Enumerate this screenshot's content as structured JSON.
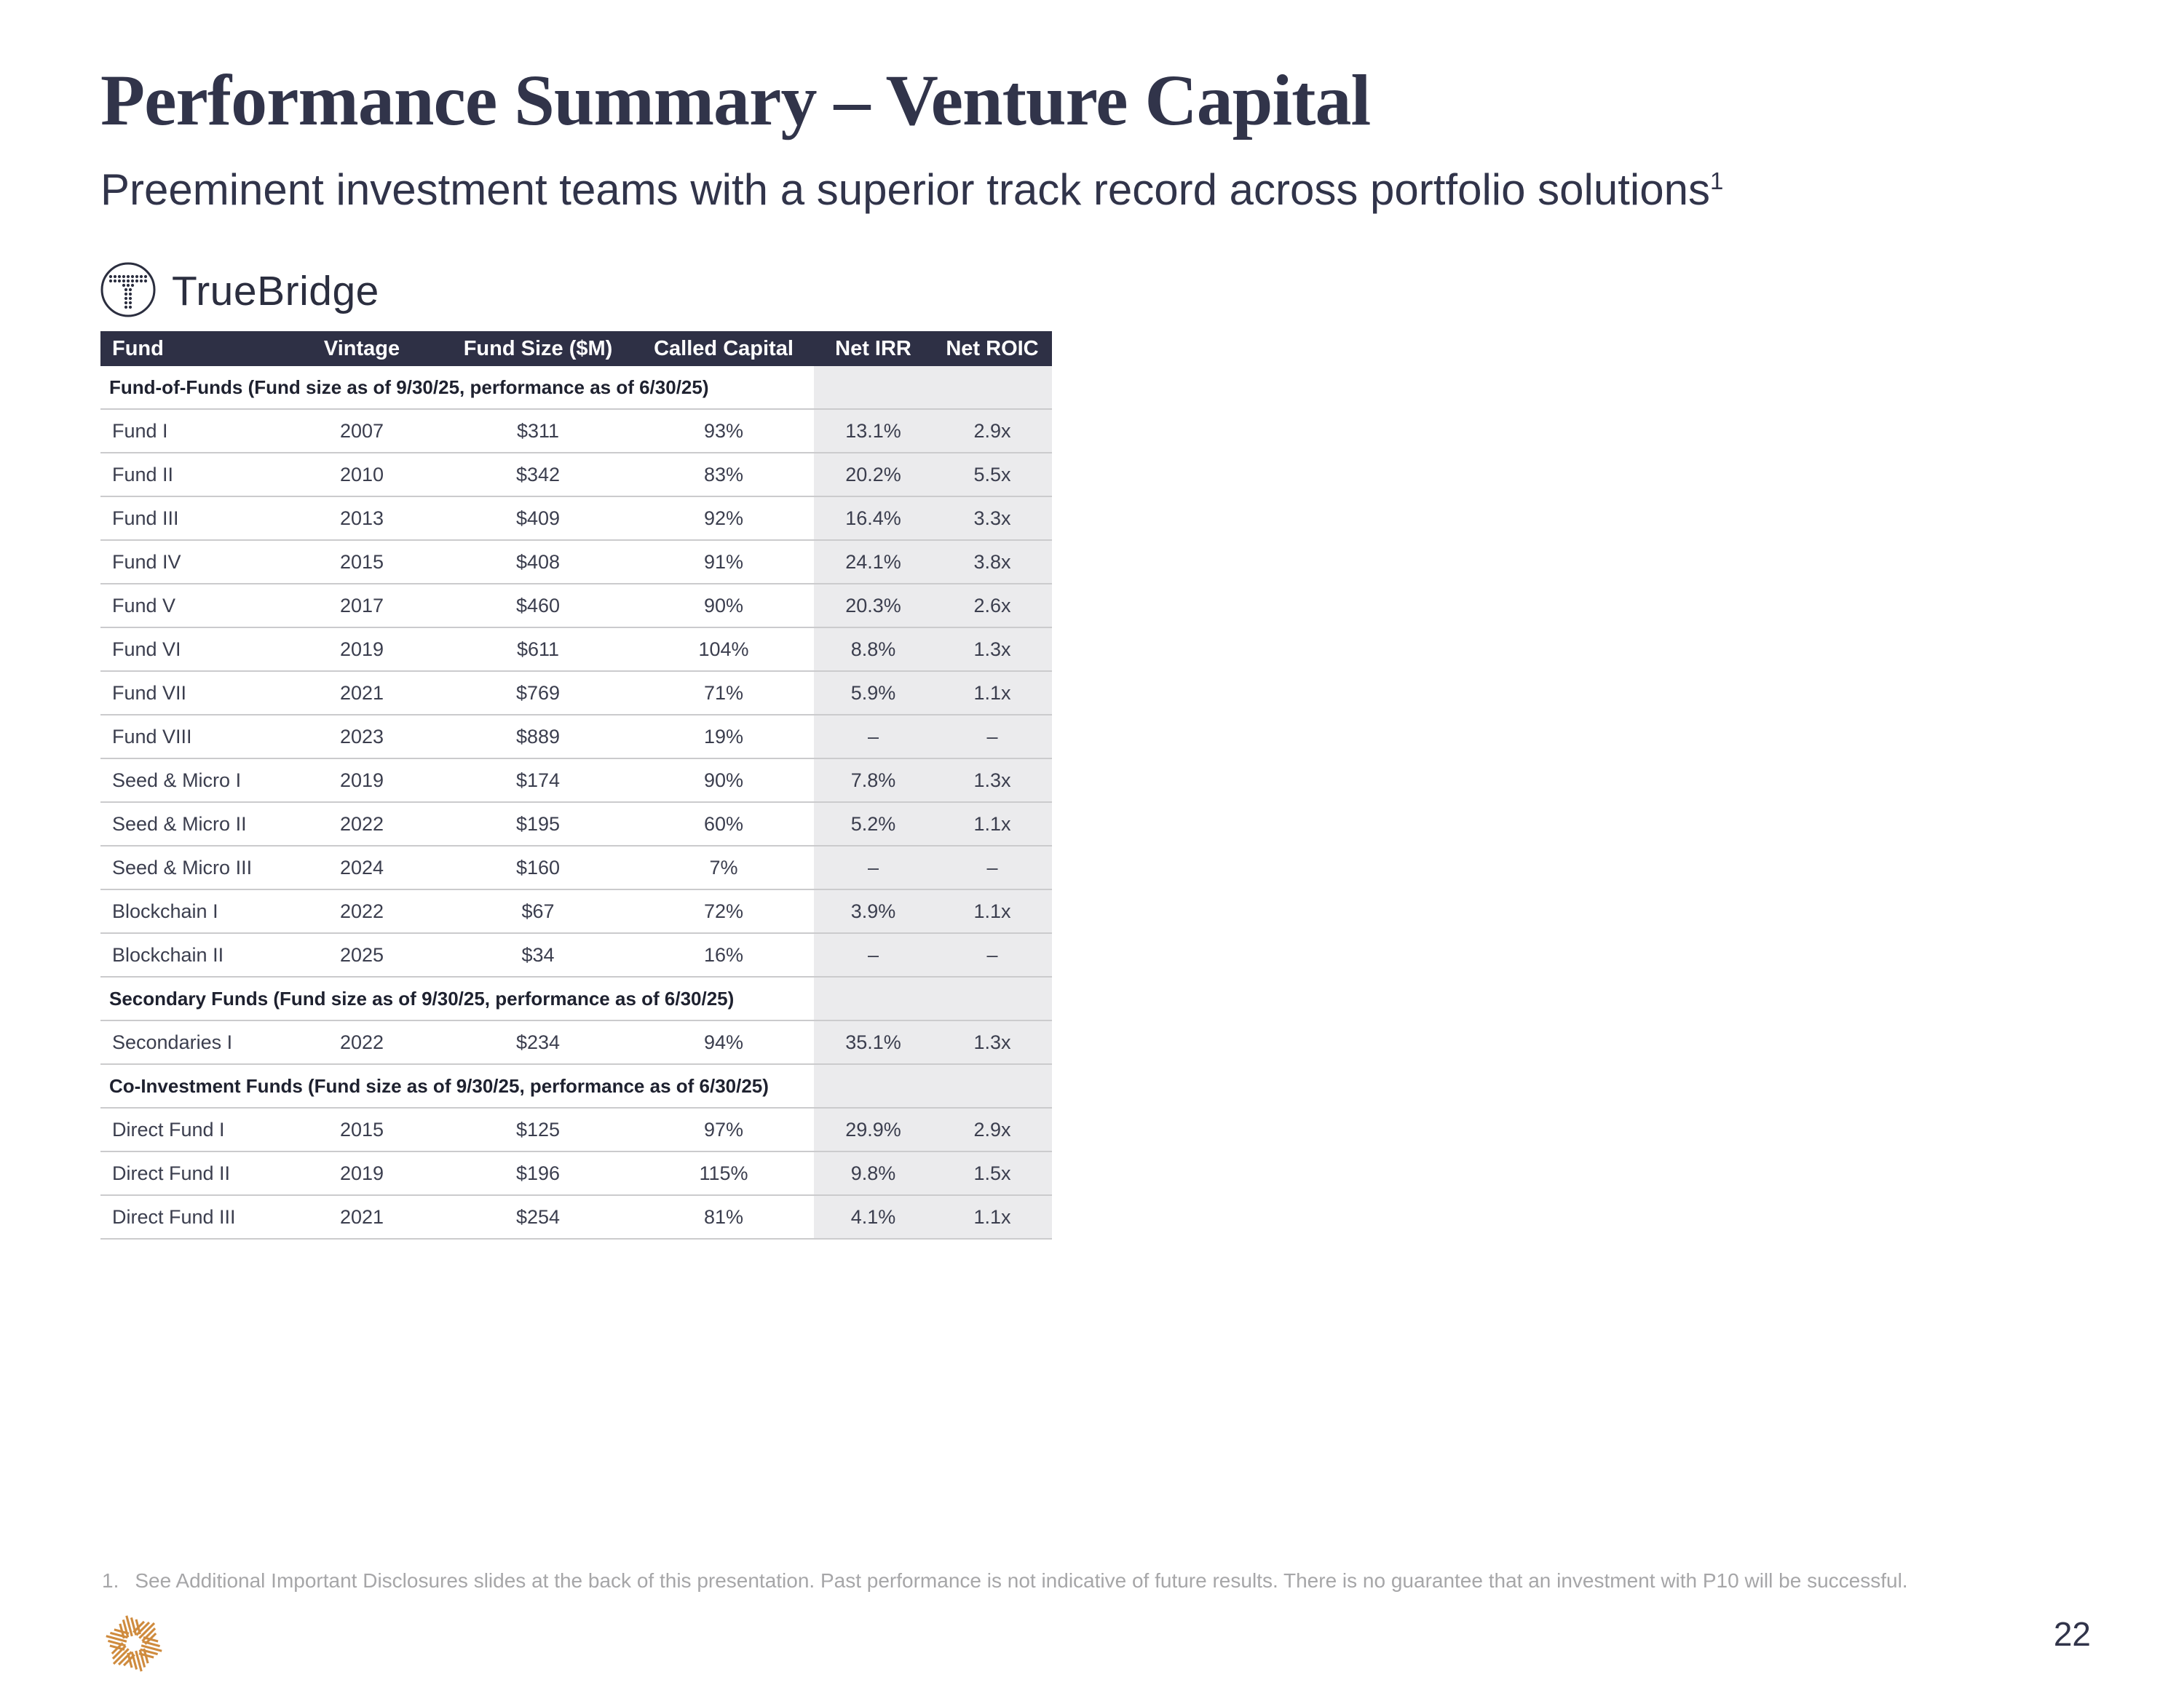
{
  "slide": {
    "title": "Performance Summary – Venture Capital",
    "subtitle": "Preeminent investment teams with a superior track record across portfolio solutions",
    "subtitle_footnote_marker": "1",
    "page_number": "22"
  },
  "brand": {
    "wordmark": "TrueBridge"
  },
  "icons": {
    "truebridge_mark": "circle-with-dotted-t-icon",
    "p10_mark": "orange-starburst-icon"
  },
  "colors": {
    "header_bg": "#2e3045",
    "shade_column": "#ebebed",
    "row_line": "#cbcbcd",
    "title_text": "#31344a",
    "footnote_text": "#a6a6a8",
    "p10_orange": "#cf8b3e"
  },
  "table": {
    "columns": [
      "Fund",
      "Vintage",
      "Fund Size ($M)",
      "Called Capital",
      "Net IRR",
      "Net ROIC"
    ],
    "rows": [
      {
        "type": "section",
        "label": "Fund-of-Funds (Fund size as of 9/30/25, performance as of 6/30/25)"
      },
      {
        "type": "data",
        "fund": "Fund I",
        "vintage": "2007",
        "fund_size": "$311",
        "called_capital": "93%",
        "net_irr": "13.1%",
        "net_roic": "2.9x"
      },
      {
        "type": "data",
        "fund": "Fund II",
        "vintage": "2010",
        "fund_size": "$342",
        "called_capital": "83%",
        "net_irr": "20.2%",
        "net_roic": "5.5x"
      },
      {
        "type": "data",
        "fund": "Fund III",
        "vintage": "2013",
        "fund_size": "$409",
        "called_capital": "92%",
        "net_irr": "16.4%",
        "net_roic": "3.3x"
      },
      {
        "type": "data",
        "fund": "Fund IV",
        "vintage": "2015",
        "fund_size": "$408",
        "called_capital": "91%",
        "net_irr": "24.1%",
        "net_roic": "3.8x"
      },
      {
        "type": "data",
        "fund": "Fund V",
        "vintage": "2017",
        "fund_size": "$460",
        "called_capital": "90%",
        "net_irr": "20.3%",
        "net_roic": "2.6x"
      },
      {
        "type": "data",
        "fund": "Fund VI",
        "vintage": "2019",
        "fund_size": "$611",
        "called_capital": "104%",
        "net_irr": "8.8%",
        "net_roic": "1.3x"
      },
      {
        "type": "data",
        "fund": "Fund VII",
        "vintage": "2021",
        "fund_size": "$769",
        "called_capital": "71%",
        "net_irr": "5.9%",
        "net_roic": "1.1x"
      },
      {
        "type": "data",
        "fund": "Fund VIII",
        "vintage": "2023",
        "fund_size": "$889",
        "called_capital": "19%",
        "net_irr": "–",
        "net_roic": "–"
      },
      {
        "type": "data",
        "fund": "Seed & Micro I",
        "vintage": "2019",
        "fund_size": "$174",
        "called_capital": "90%",
        "net_irr": "7.8%",
        "net_roic": "1.3x"
      },
      {
        "type": "data",
        "fund": "Seed & Micro II",
        "vintage": "2022",
        "fund_size": "$195",
        "called_capital": "60%",
        "net_irr": "5.2%",
        "net_roic": "1.1x"
      },
      {
        "type": "data",
        "fund": "Seed & Micro III",
        "vintage": "2024",
        "fund_size": "$160",
        "called_capital": "7%",
        "net_irr": "–",
        "net_roic": "–"
      },
      {
        "type": "data",
        "fund": "Blockchain I",
        "vintage": "2022",
        "fund_size": "$67",
        "called_capital": "72%",
        "net_irr": "3.9%",
        "net_roic": "1.1x"
      },
      {
        "type": "data",
        "fund": "Blockchain II",
        "vintage": "2025",
        "fund_size": "$34",
        "called_capital": "16%",
        "net_irr": "–",
        "net_roic": "–"
      },
      {
        "type": "section",
        "label": "Secondary Funds (Fund size as of 9/30/25, performance as of 6/30/25)"
      },
      {
        "type": "data",
        "fund": "Secondaries I",
        "vintage": "2022",
        "fund_size": "$234",
        "called_capital": "94%",
        "net_irr": "35.1%",
        "net_roic": "1.3x"
      },
      {
        "type": "section",
        "label": "Co-Investment Funds (Fund size as of 9/30/25, performance as of 6/30/25)"
      },
      {
        "type": "data",
        "fund": "Direct Fund I",
        "vintage": "2015",
        "fund_size": "$125",
        "called_capital": "97%",
        "net_irr": "29.9%",
        "net_roic": "2.9x"
      },
      {
        "type": "data",
        "fund": "Direct Fund II",
        "vintage": "2019",
        "fund_size": "$196",
        "called_capital": "115%",
        "net_irr": "9.8%",
        "net_roic": "1.5x"
      },
      {
        "type": "data",
        "fund": "Direct Fund III",
        "vintage": "2021",
        "fund_size": "$254",
        "called_capital": "81%",
        "net_irr": "4.1%",
        "net_roic": "1.1x"
      }
    ]
  },
  "footnote": {
    "marker": "1.",
    "text": "See Additional Important Disclosures slides at the back of this presentation. Past performance is not indicative of future results. There is no guarantee that an investment with P10 will be successful."
  }
}
